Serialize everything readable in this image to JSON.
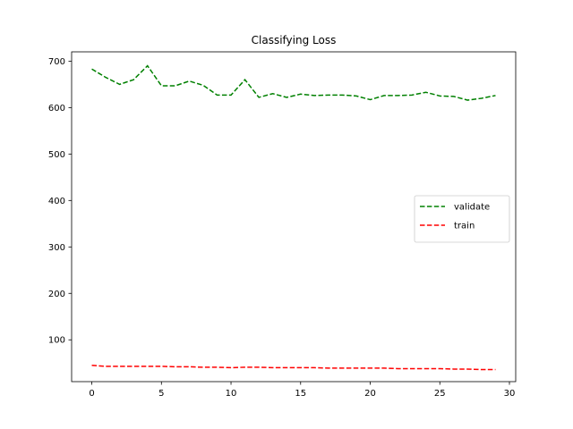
{
  "chart_data": {
    "type": "line",
    "title": "Classifying Loss",
    "xlabel": "",
    "ylabel": "",
    "x": [
      0,
      1,
      2,
      3,
      4,
      5,
      6,
      7,
      8,
      9,
      10,
      11,
      12,
      13,
      14,
      15,
      16,
      17,
      18,
      19,
      20,
      21,
      22,
      23,
      24,
      25,
      26,
      27,
      28,
      29
    ],
    "xlim": [
      -1.45,
      30.45
    ],
    "ylim": [
      10,
      720
    ],
    "xticks": [
      0,
      5,
      10,
      15,
      20,
      25,
      30
    ],
    "yticks": [
      100,
      200,
      300,
      400,
      500,
      600,
      700
    ],
    "grid": false,
    "legend_position": "center-right",
    "series": [
      {
        "name": "validate",
        "color": "#008000",
        "linestyle": "dashed",
        "values": [
          683,
          665,
          650,
          660,
          690,
          647,
          647,
          657,
          648,
          627,
          627,
          660,
          622,
          630,
          622,
          629,
          626,
          627,
          627,
          625,
          617,
          626,
          626,
          627,
          633,
          625,
          624,
          616,
          620,
          626
        ]
      },
      {
        "name": "train",
        "color": "#ff0000",
        "linestyle": "dashed",
        "values": [
          45,
          43,
          43,
          43,
          43,
          43,
          42,
          42,
          41,
          41,
          40,
          41,
          41,
          40,
          40,
          40,
          40,
          39,
          39,
          39,
          39,
          39,
          38,
          38,
          38,
          38,
          37,
          37,
          36,
          36
        ]
      }
    ]
  }
}
